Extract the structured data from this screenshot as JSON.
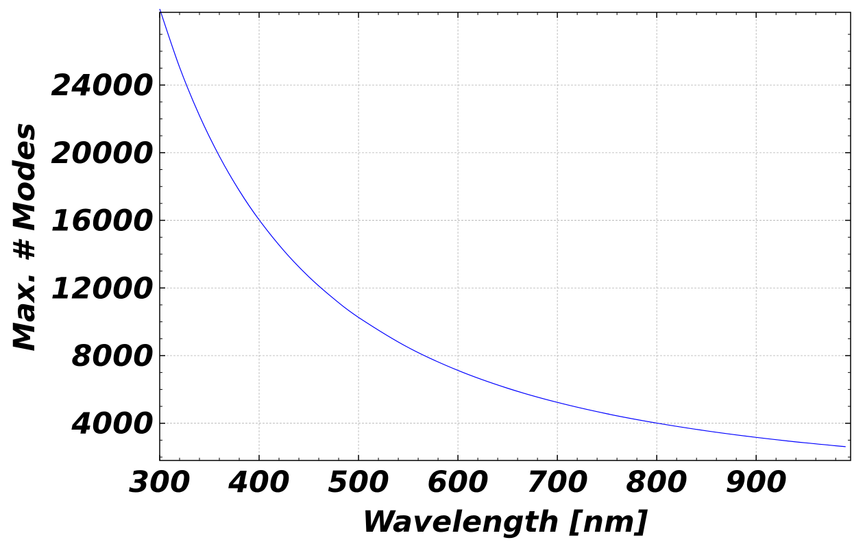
{
  "chart_data": {
    "type": "line",
    "title": "",
    "xlabel": "Wavelength [nm]",
    "ylabel": "Max. # Modes",
    "xlim": [
      300,
      995
    ],
    "ylim": [
      1800,
      28300
    ],
    "x_ticks": [
      300,
      400,
      500,
      600,
      700,
      800,
      900
    ],
    "y_ticks": [
      4000,
      8000,
      12000,
      16000,
      20000,
      24000
    ],
    "x_tick_labels": [
      "300",
      "400",
      "500",
      "600",
      "700",
      "800",
      "900"
    ],
    "y_tick_labels": [
      "4000",
      "8000",
      "12000",
      "16000",
      "20000",
      "24000"
    ],
    "grid": true,
    "legend": "none",
    "series": [
      {
        "color": "#0000ff",
        "x": [
          300,
          320,
          340,
          360,
          380,
          400,
          425,
          450,
          475,
          500,
          550,
          600,
          650,
          700,
          750,
          800,
          850,
          900,
          950,
          990
        ],
        "y": [
          28500,
          25050,
          22190,
          19790,
          17760,
          16030,
          14200,
          12660,
          11370,
          10260,
          8480,
          7125,
          6070,
          5235,
          4560,
          4010,
          3550,
          3165,
          2840,
          2615
        ]
      }
    ]
  }
}
